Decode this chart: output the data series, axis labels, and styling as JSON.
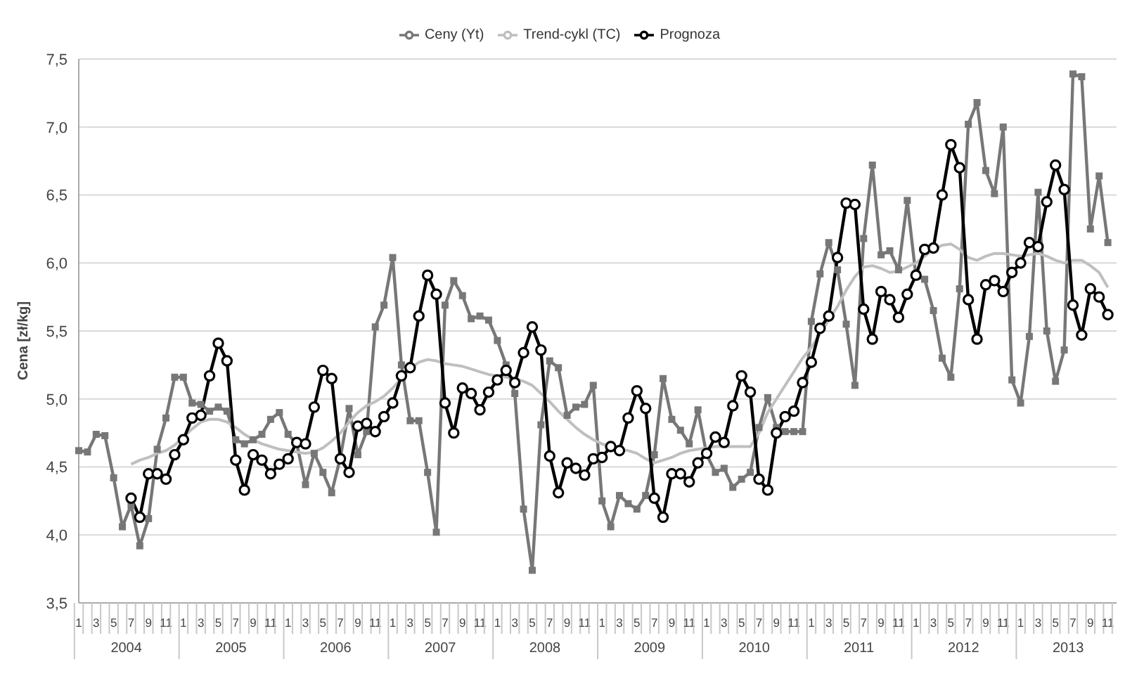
{
  "chart_data": {
    "type": "line",
    "ylabel": "Cena [zł/kg]",
    "categories": [
      "1",
      null,
      "3",
      null,
      "5",
      null,
      "7",
      null,
      "9",
      null,
      "11",
      null,
      "1",
      null,
      "3",
      null,
      "5",
      null,
      "7",
      null,
      "9",
      null,
      "11",
      null,
      "1",
      null,
      "3",
      null,
      "5",
      null,
      "7",
      null,
      "9",
      null,
      "11",
      null,
      "1",
      null,
      "3",
      null,
      "5",
      null,
      "7",
      null,
      "9",
      null,
      "11",
      null,
      "1",
      null,
      "3",
      null,
      "5",
      null,
      "7",
      null,
      "9",
      null,
      "11",
      null,
      "1",
      null,
      "3",
      null,
      "5",
      null,
      "7",
      null,
      "9",
      null,
      "11",
      null,
      "1",
      null,
      "3",
      null,
      "5",
      null,
      "7",
      null,
      "9",
      null,
      "11",
      null,
      "1",
      null,
      "3",
      null,
      "5",
      null,
      "7",
      null,
      "9",
      null,
      "11",
      null,
      "1",
      null,
      "3",
      null,
      "5",
      null,
      "7",
      null,
      "9",
      null,
      "11",
      null,
      "1",
      null,
      "3",
      null,
      "5",
      null,
      "7",
      null,
      "9",
      null,
      "11",
      null
    ],
    "annotations": [
      "2004",
      "2005",
      "2006",
      "2007",
      "2008",
      "2009",
      "2010",
      "2011",
      "2012",
      "2013"
    ],
    "series": [
      {
        "name": "Ceny (Yt)",
        "color": "#777777",
        "marker": "square",
        "values": [
          4.62,
          4.61,
          4.74,
          4.73,
          4.42,
          4.06,
          4.22,
          3.92,
          4.12,
          4.63,
          4.86,
          5.16,
          5.16,
          4.97,
          4.96,
          4.91,
          4.94,
          4.91,
          4.7,
          4.67,
          4.7,
          4.74,
          4.85,
          4.9,
          4.74,
          4.67,
          4.37,
          4.6,
          4.46,
          4.31,
          4.57,
          4.93,
          4.59,
          4.76,
          5.53,
          5.69,
          6.04,
          5.25,
          4.84,
          4.84,
          4.46,
          4.02,
          5.69,
          5.87,
          5.76,
          5.59,
          5.61,
          5.58,
          5.43,
          5.25,
          5.04,
          4.19,
          3.74,
          4.81,
          5.28,
          5.23,
          4.88,
          4.94,
          4.96,
          5.1,
          4.25,
          4.06,
          4.29,
          4.23,
          4.19,
          4.29,
          4.59,
          5.15,
          4.85,
          4.77,
          4.67,
          4.92,
          4.59,
          4.46,
          4.49,
          4.35,
          4.41,
          4.46,
          4.79,
          5.01,
          4.79,
          4.76,
          4.76,
          4.76,
          5.57,
          5.92,
          6.15,
          5.95,
          5.55,
          5.1,
          6.18,
          6.72,
          6.06,
          6.09,
          5.95,
          6.46,
          5.9,
          5.88,
          5.65,
          5.3,
          5.16,
          5.81,
          7.02,
          7.18,
          6.68,
          6.51,
          7.0,
          5.14,
          4.97,
          5.46,
          6.52,
          5.5,
          5.13,
          5.36,
          7.39,
          7.37,
          6.25,
          6.64,
          6.15,
          null
        ]
      },
      {
        "name": "Trend-cykl (TC)",
        "color": "#bfbfbf",
        "marker": "none",
        "values": [
          null,
          null,
          null,
          null,
          null,
          null,
          4.52,
          4.55,
          4.57,
          4.6,
          4.62,
          4.66,
          4.72,
          4.78,
          4.83,
          4.85,
          4.85,
          4.83,
          4.79,
          4.74,
          4.7,
          4.67,
          4.65,
          4.63,
          4.62,
          4.61,
          4.6,
          4.61,
          4.64,
          4.69,
          4.75,
          4.83,
          4.9,
          4.95,
          4.98,
          5.02,
          5.08,
          5.15,
          5.22,
          5.27,
          5.29,
          5.28,
          5.26,
          5.25,
          5.24,
          5.22,
          5.2,
          5.18,
          5.17,
          5.16,
          5.15,
          5.13,
          5.1,
          5.04,
          4.98,
          4.91,
          4.85,
          4.79,
          4.74,
          4.7,
          4.67,
          4.65,
          4.63,
          4.62,
          4.6,
          4.56,
          4.53,
          4.55,
          4.57,
          4.6,
          4.62,
          4.63,
          4.64,
          4.65,
          4.65,
          4.65,
          4.65,
          4.65,
          4.75,
          4.9,
          5.0,
          5.1,
          5.2,
          5.3,
          5.38,
          5.48,
          5.58,
          5.68,
          5.8,
          5.9,
          5.97,
          5.98,
          5.96,
          5.93,
          5.94,
          5.97,
          6.0,
          6.05,
          6.1,
          6.13,
          6.14,
          6.1,
          6.04,
          6.02,
          6.05,
          6.07,
          6.07,
          6.06,
          6.05,
          6.06,
          6.07,
          6.05,
          6.02,
          6.0,
          6.02,
          6.02,
          5.98,
          5.93,
          5.82,
          null
        ]
      },
      {
        "name": "Prognoza",
        "color": "#000000",
        "marker": "circle",
        "values": [
          null,
          null,
          null,
          null,
          null,
          null,
          4.27,
          4.13,
          4.45,
          4.45,
          4.41,
          4.59,
          4.7,
          4.86,
          4.88,
          5.17,
          5.41,
          5.28,
          4.55,
          4.33,
          4.59,
          4.55,
          4.45,
          4.52,
          4.56,
          4.68,
          4.67,
          4.94,
          5.21,
          5.15,
          4.56,
          4.46,
          4.8,
          4.82,
          4.76,
          4.87,
          4.97,
          5.17,
          5.23,
          5.61,
          5.91,
          5.77,
          4.97,
          4.75,
          5.08,
          5.04,
          4.92,
          5.05,
          5.14,
          5.21,
          5.12,
          5.34,
          5.53,
          5.36,
          4.58,
          4.31,
          4.53,
          4.49,
          4.44,
          4.56,
          4.57,
          4.65,
          4.62,
          4.86,
          5.06,
          4.93,
          4.27,
          4.13,
          4.45,
          4.45,
          4.39,
          4.53,
          4.6,
          4.72,
          4.68,
          4.95,
          5.17,
          5.05,
          4.41,
          4.33,
          4.75,
          4.87,
          4.91,
          5.12,
          5.27,
          5.52,
          5.61,
          6.04,
          6.44,
          6.43,
          5.66,
          5.44,
          5.79,
          5.73,
          5.6,
          5.77,
          5.91,
          6.1,
          6.11,
          6.5,
          6.87,
          6.7,
          5.73,
          5.44,
          5.84,
          5.87,
          5.79,
          5.93,
          6.0,
          6.15,
          6.12,
          6.45,
          6.72,
          6.54,
          5.69,
          5.47,
          5.81,
          5.75,
          5.62,
          null
        ]
      }
    ],
    "ylim": [
      3.5,
      7.5
    ],
    "yticks": [
      {
        "value": 3.5,
        "label": "3,5"
      },
      {
        "value": 4.0,
        "label": "4,0"
      },
      {
        "value": 4.5,
        "label": "4,5"
      },
      {
        "value": 5.0,
        "label": "5,0"
      },
      {
        "value": 5.5,
        "label": "5,5"
      },
      {
        "value": 6.0,
        "label": "6,0"
      },
      {
        "value": 6.5,
        "label": "6,5"
      },
      {
        "value": 7.0,
        "label": "7,0"
      },
      {
        "value": 7.5,
        "label": "7,5"
      }
    ],
    "grid": "y",
    "legend": "top"
  }
}
